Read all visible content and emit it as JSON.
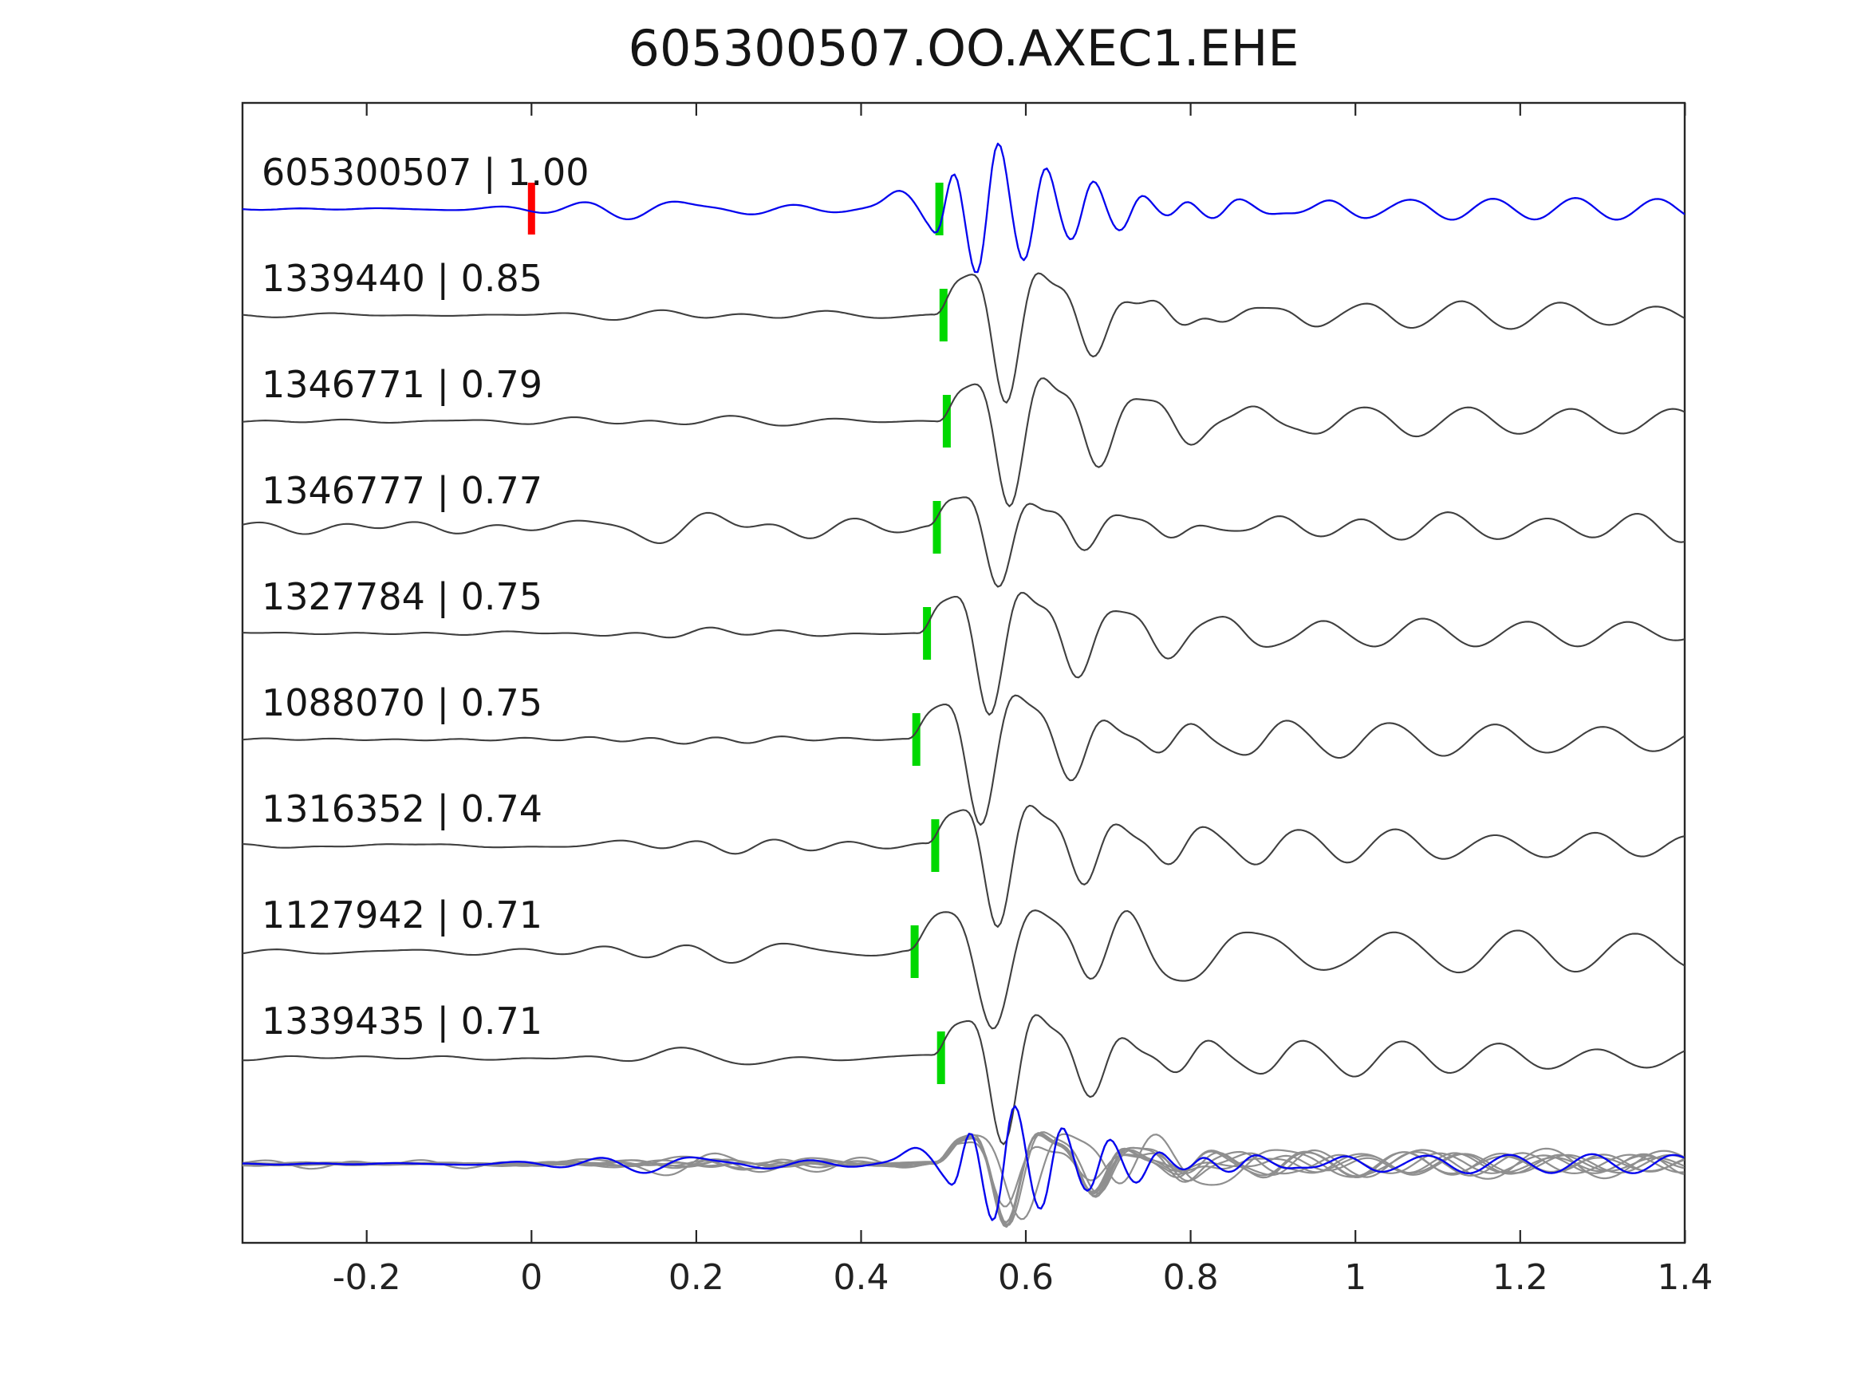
{
  "title": "605300507.OO.AXEC1.EHE",
  "colors": {
    "template_trace": "#0505ee",
    "match_trace": "#3f3f3f",
    "pick_marker": "#00d800",
    "origin_marker": "#ff0000",
    "overlay_gray": "#8f8f8f",
    "axis": "#262626",
    "text": "#151515"
  },
  "axis": {
    "xlim": [
      -0.351,
      1.4
    ],
    "tick_values": [
      -0.2,
      0,
      0.2,
      0.4,
      0.6,
      0.8,
      1,
      1.2,
      1.4
    ],
    "tick_labels": [
      "-0.2",
      "0",
      "0.2",
      "0.4",
      "0.6",
      "0.8",
      "1",
      "1.2",
      "1.4"
    ]
  },
  "chart_data": {
    "type": "line",
    "title": "605300507.OO.AXEC1.EHE",
    "xlim": [
      -0.351,
      1.4
    ],
    "x_ticks": [
      -0.2,
      0,
      0.2,
      0.4,
      0.6,
      0.8,
      1,
      1.2,
      1.4
    ],
    "grid": false,
    "legend": "none",
    "description": "Template waveform (blue, top) with matched detection waveforms (gray), correlation coefficients, green pick markers per trace, red origin marker at t=0, and an aligned overlay of all traces at the bottom.",
    "series": [
      {
        "name": "605300507",
        "label": "605300507 | 1.00",
        "correlation": 1.0,
        "cc_text": "1.00",
        "pick_time": 0.495,
        "origin_time": 0.0,
        "role": "template",
        "wave": {
          "seed": 11,
          "amp": 82,
          "freq": 17.2,
          "phase": 4.65,
          "rise": 0.05,
          "decay": 0.1,
          "noise_base": 1.6,
          "noise_bump": 10,
          "coda_amp": 13,
          "coda_freq": 10,
          "coda_decay": 0.5,
          "harmonic": 0.05,
          "swell": 0.26,
          "amp2": 0,
          "t02": 0,
          "freq2": 0,
          "decay2": 0
        }
      },
      {
        "name": "1339440",
        "label": "1339440 | 0.85",
        "correlation": 0.85,
        "cc_text": "0.85",
        "pick_time": 0.5,
        "role": "match",
        "wave": {
          "seed": 22,
          "amp": 88,
          "freq": 9.4,
          "phase": -0.6,
          "rise": 0.05,
          "decay": 0.115,
          "noise_base": 2.2,
          "noise_bump": 8,
          "coda_amp": 18,
          "coda_freq": 8.5,
          "coda_decay": 0.28,
          "harmonic": 0.3,
          "swell": 0,
          "amp2": 0,
          "t02": 0,
          "freq2": 0,
          "decay2": 0
        }
      },
      {
        "name": "1346771",
        "label": "1346771 | 0.79",
        "correlation": 0.79,
        "cc_text": "0.79",
        "pick_time": 0.504,
        "role": "match",
        "wave": {
          "seed": 33,
          "amp": 86,
          "freq": 9.2,
          "phase": -0.5,
          "rise": 0.05,
          "decay": 0.12,
          "noise_base": 2.0,
          "noise_bump": 7,
          "coda_amp": 20,
          "coda_freq": 8.0,
          "coda_decay": 0.28,
          "harmonic": 0.3,
          "swell": 0,
          "amp2": 0,
          "t02": 0,
          "freq2": 0,
          "decay2": 0
        }
      },
      {
        "name": "1346777",
        "label": "1346777 | 0.77",
        "correlation": 0.77,
        "cc_text": "0.77",
        "pick_time": 0.492,
        "role": "match",
        "wave": {
          "seed": 44,
          "amp": 62,
          "freq": 9.5,
          "phase": -0.6,
          "rise": 0.045,
          "decay": 0.1,
          "noise_base": 7.5,
          "noise_bump": 9,
          "coda_amp": 16,
          "coda_freq": 9.0,
          "coda_decay": 0.5,
          "harmonic": 0.32,
          "swell": 0,
          "amp2": 0,
          "t02": 0,
          "freq2": 0,
          "decay2": 0
        }
      },
      {
        "name": "1327784",
        "label": "1327784 | 0.75",
        "correlation": 0.75,
        "cc_text": "0.75",
        "pick_time": 0.48,
        "role": "match",
        "wave": {
          "seed": 55,
          "amp": 84,
          "freq": 9.3,
          "phase": -0.55,
          "rise": 0.05,
          "decay": 0.115,
          "noise_base": 2.6,
          "noise_bump": 8,
          "coda_amp": 18,
          "coda_freq": 8.2,
          "coda_decay": 0.28,
          "harmonic": 0.3,
          "swell": 0,
          "amp2": 0,
          "t02": 0,
          "freq2": 0,
          "decay2": 0
        }
      },
      {
        "name": "1088070",
        "label": "1088070 | 0.75",
        "correlation": 0.75,
        "cc_text": "0.75",
        "pick_time": 0.467,
        "role": "match",
        "wave": {
          "seed": 66,
          "amp": 86,
          "freq": 9.0,
          "phase": -0.5,
          "rise": 0.055,
          "decay": 0.125,
          "noise_base": 2.0,
          "noise_bump": 7,
          "coda_amp": 20,
          "coda_freq": 7.8,
          "coda_decay": 0.3,
          "harmonic": 0.28,
          "swell": 0,
          "amp2": 0,
          "t02": 0,
          "freq2": 0,
          "decay2": 0
        }
      },
      {
        "name": "1316352",
        "label": "1316352 | 0.74",
        "correlation": 0.74,
        "cc_text": "0.74",
        "pick_time": 0.49,
        "role": "match",
        "wave": {
          "seed": 77,
          "amp": 83,
          "freq": 9.4,
          "phase": -0.6,
          "rise": 0.05,
          "decay": 0.115,
          "noise_base": 2.6,
          "noise_bump": 8,
          "coda_amp": 18,
          "coda_freq": 8.4,
          "coda_decay": 0.28,
          "harmonic": 0.3,
          "swell": 0,
          "amp2": 0,
          "t02": 0,
          "freq2": 0,
          "decay2": 0
        }
      },
      {
        "name": "1127942",
        "label": "1127942 | 0.71",
        "correlation": 0.71,
        "cc_text": "0.71",
        "pick_time": 0.465,
        "role": "match",
        "wave": {
          "seed": 88,
          "amp": 80,
          "freq": 7.8,
          "phase": -0.7,
          "rise": 0.06,
          "decay": 0.13,
          "noise_base": 3.2,
          "noise_bump": 14,
          "coda_amp": 30,
          "coda_freq": 7.0,
          "coda_decay": 0.34,
          "harmonic": 0.25,
          "swell": 0,
          "amp2": 72,
          "t02": 0.655,
          "freq2": 6.8,
          "decay2": 0.12
        }
      },
      {
        "name": "1339435",
        "label": "1339435 | 0.71",
        "correlation": 0.71,
        "cc_text": "0.71",
        "pick_time": 0.497,
        "role": "match",
        "wave": {
          "seed": 99,
          "amp": 86,
          "freq": 9.3,
          "phase": -0.55,
          "rise": 0.05,
          "decay": 0.115,
          "noise_base": 2.6,
          "noise_bump": 8,
          "coda_amp": 19,
          "coda_freq": 8.3,
          "coda_decay": 0.28,
          "harmonic": 0.3,
          "swell": 0,
          "amp2": 0,
          "t02": 0,
          "freq2": 0,
          "decay2": 0
        }
      }
    ],
    "overlay": {
      "gray_members": [
        1,
        2,
        3,
        4,
        5,
        6,
        7,
        8
      ],
      "align_pick_at": 0.5,
      "gray_amp_scale": 0.72,
      "blue_member": 0,
      "blue_align_at": 0.515,
      "blue_amp_scale": 0.88
    }
  }
}
